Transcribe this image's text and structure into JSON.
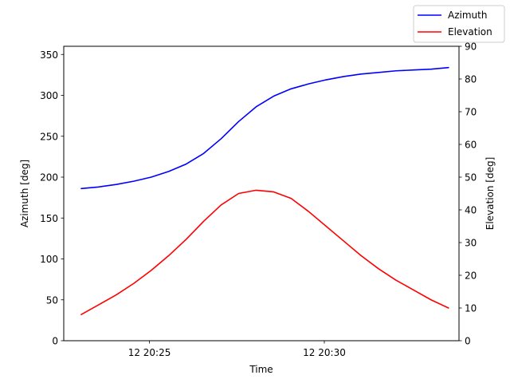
{
  "chart_data": {
    "type": "line",
    "title": "",
    "xlabel": "Time",
    "ylabel_left": "Azimuth [deg]",
    "ylabel_right": "Elevation [deg]",
    "x_tick_labels": [
      "12 20:25",
      "12 20:30"
    ],
    "x_tick_values_min": [
      25,
      30
    ],
    "xlim_min": [
      22.55,
      33.85
    ],
    "left_ylim": [
      0,
      360
    ],
    "right_ylim": [
      0,
      90
    ],
    "left_ticks": [
      0,
      50,
      100,
      150,
      200,
      250,
      300,
      350
    ],
    "right_ticks": [
      0,
      10,
      20,
      30,
      40,
      50,
      60,
      70,
      80,
      90
    ],
    "grid": false,
    "legend_position": "top-right",
    "x_minutes_after_20_00": [
      23.05,
      23.55,
      24.05,
      24.55,
      25.05,
      25.55,
      26.05,
      26.55,
      27.05,
      27.55,
      28.05,
      28.55,
      29.05,
      29.55,
      30.05,
      30.55,
      31.05,
      31.55,
      32.05,
      32.55,
      33.05,
      33.55
    ],
    "series": [
      {
        "name": "Azimuth",
        "axis": "left",
        "color": "#0000ff",
        "values": [
          186,
          188,
          191,
          195,
          200,
          207,
          216,
          229,
          247,
          268,
          286,
          299,
          308,
          314,
          319,
          323,
          326,
          328,
          330,
          331,
          332,
          334
        ]
      },
      {
        "name": "Elevation",
        "axis": "right",
        "color": "#ff0000",
        "values": [
          8,
          11,
          14,
          17.5,
          21.5,
          26,
          31,
          36.5,
          41.5,
          45,
          46,
          45.5,
          43.5,
          39.5,
          35,
          30.5,
          26,
          22,
          18.5,
          15.5,
          12.5,
          10
        ]
      }
    ]
  }
}
